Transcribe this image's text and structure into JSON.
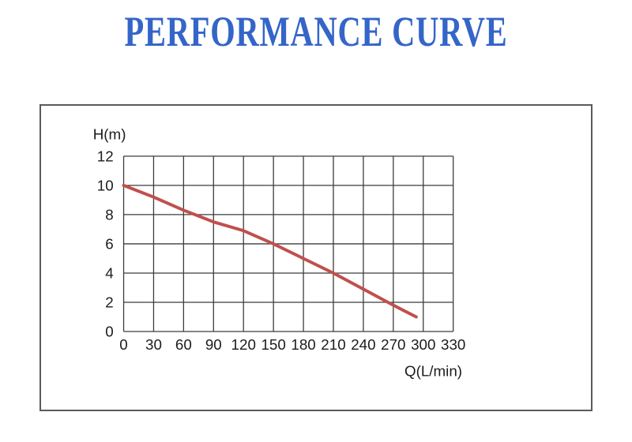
{
  "page": {
    "title": "PERFORMANCE CURVE",
    "title_color": "#3465c8",
    "background_color": "#ffffff"
  },
  "chart_data": {
    "type": "line",
    "title": "PERFORMANCE CURVE",
    "xlabel": "Q(L/min)",
    "ylabel": "H(m)",
    "xlim": [
      0,
      330
    ],
    "ylim": [
      0,
      12
    ],
    "x_ticks": [
      0,
      30,
      60,
      90,
      120,
      150,
      180,
      210,
      240,
      270,
      300,
      330
    ],
    "y_ticks": [
      0,
      2,
      4,
      6,
      8,
      10,
      12
    ],
    "grid": true,
    "legend_position": "none",
    "grid_color": "#3c3c3c",
    "axis_text_color": "#1c1c1c",
    "frame_color": "#5a5a5a",
    "series": [
      {
        "name": "head-vs-flow-curve",
        "color": "#c0504d",
        "points": [
          [
            0,
            10
          ],
          [
            30,
            9.2
          ],
          [
            60,
            8.3
          ],
          [
            90,
            7.5
          ],
          [
            120,
            6.9
          ],
          [
            150,
            6
          ],
          [
            180,
            5
          ],
          [
            210,
            4
          ],
          [
            240,
            2.9
          ],
          [
            270,
            1.8
          ],
          [
            293,
            1
          ]
        ]
      }
    ]
  }
}
